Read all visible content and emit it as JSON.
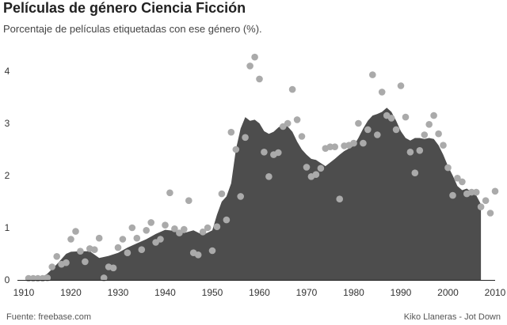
{
  "chart_data": {
    "type": "area",
    "title": "Películas de género Ciencia Ficción",
    "subtitle": "Porcentaje de películas etiquetadas con ese género (%).",
    "xlabel": "",
    "ylabel": "",
    "xlim": [
      1910,
      2010
    ],
    "ylim": [
      0,
      4.3
    ],
    "x_ticks": [
      1910,
      1920,
      1930,
      1940,
      1950,
      1960,
      1970,
      1980,
      1990,
      2000,
      2010
    ],
    "y_ticks": [
      0,
      1,
      2,
      3,
      4
    ],
    "grid": false,
    "colors": {
      "area": "#4d4d4d",
      "points": "#aaaaaa",
      "axis": "#222222"
    },
    "series": [
      {
        "kind": "area",
        "x": [
          1913,
          1915,
          1917,
          1919,
          1920,
          1922,
          1924,
          1926,
          1928,
          1930,
          1932,
          1934,
          1936,
          1938,
          1940,
          1942,
          1944,
          1946,
          1948,
          1950,
          1951,
          1952,
          1953,
          1954,
          1955,
          1956,
          1957,
          1958,
          1959,
          1960,
          1961,
          1962,
          1963,
          1964,
          1965,
          1966,
          1967,
          1968,
          1969,
          1970,
          1971,
          1972,
          1973,
          1974,
          1975,
          1976,
          1977,
          1978,
          1979,
          1980,
          1981,
          1982,
          1983,
          1984,
          1985,
          1986,
          1987,
          1988,
          1989,
          1990,
          1991,
          1992,
          1993,
          1994,
          1995,
          1996,
          1997,
          1998,
          1999,
          2000,
          2001,
          2002,
          2003,
          2004,
          2005,
          2006,
          2007
        ],
        "values": [
          0.0,
          0.12,
          0.3,
          0.5,
          0.54,
          0.55,
          0.55,
          0.42,
          0.46,
          0.52,
          0.62,
          0.7,
          0.78,
          0.88,
          0.96,
          0.94,
          0.9,
          0.95,
          0.86,
          0.95,
          1.25,
          1.5,
          1.6,
          1.85,
          2.5,
          2.9,
          3.12,
          3.05,
          3.07,
          3.0,
          2.85,
          2.8,
          2.84,
          2.92,
          2.98,
          2.94,
          2.84,
          2.65,
          2.5,
          2.4,
          2.32,
          2.3,
          2.24,
          2.18,
          2.25,
          2.32,
          2.4,
          2.47,
          2.52,
          2.57,
          2.72,
          2.9,
          3.05,
          3.15,
          3.18,
          3.22,
          3.3,
          3.22,
          3.05,
          2.85,
          2.72,
          2.67,
          2.72,
          2.72,
          2.7,
          2.72,
          2.7,
          2.58,
          2.4,
          2.18,
          2.0,
          1.8,
          1.72,
          1.75,
          1.68,
          1.62,
          1.45
        ]
      },
      {
        "kind": "scatter",
        "x": [
          1911,
          1912,
          1913,
          1914,
          1915,
          1916,
          1917,
          1918,
          1919,
          1920,
          1921,
          1922,
          1923,
          1924,
          1925,
          1926,
          1927,
          1928,
          1929,
          1930,
          1931,
          1932,
          1933,
          1934,
          1935,
          1936,
          1937,
          1938,
          1939,
          1940,
          1941,
          1942,
          1943,
          1944,
          1945,
          1946,
          1947,
          1948,
          1949,
          1950,
          1951,
          1952,
          1953,
          1954,
          1955,
          1956,
          1957,
          1958,
          1959,
          1960,
          1961,
          1962,
          1963,
          1964,
          1965,
          1966,
          1967,
          1968,
          1969,
          1970,
          1971,
          1972,
          1973,
          1974,
          1975,
          1976,
          1977,
          1978,
          1979,
          1980,
          1981,
          1982,
          1983,
          1984,
          1985,
          1986,
          1987,
          1988,
          1989,
          1990,
          1991,
          1992,
          1993,
          1994,
          1995,
          1996,
          1997,
          1998,
          1999,
          2000,
          2001,
          2002,
          2003,
          2004,
          2005,
          2006,
          2007,
          2008,
          2009,
          2010
        ],
        "values": [
          0.03,
          0.03,
          0.03,
          0.03,
          0.04,
          0.25,
          0.45,
          0.3,
          0.33,
          0.78,
          0.93,
          0.55,
          0.35,
          0.6,
          0.58,
          0.8,
          0.04,
          0.25,
          0.23,
          0.62,
          0.78,
          0.52,
          1.0,
          0.8,
          0.58,
          0.95,
          1.1,
          0.72,
          0.78,
          1.05,
          1.67,
          0.98,
          0.9,
          0.97,
          1.52,
          0.52,
          0.48,
          0.92,
          1.0,
          0.56,
          1.02,
          1.65,
          1.15,
          2.83,
          2.5,
          1.6,
          2.73,
          4.1,
          4.27,
          3.85,
          2.45,
          1.98,
          2.4,
          2.44,
          2.94,
          3.0,
          3.65,
          3.07,
          2.75,
          2.16,
          1.98,
          2.02,
          2.14,
          2.52,
          2.55,
          2.55,
          1.55,
          2.57,
          2.58,
          2.62,
          3.0,
          2.62,
          2.88,
          3.93,
          2.78,
          3.6,
          3.15,
          3.1,
          2.88,
          3.72,
          3.12,
          2.45,
          2.05,
          2.48,
          2.78,
          2.98,
          3.15,
          2.8,
          2.58,
          2.15,
          1.62,
          1.95,
          1.88,
          1.65,
          1.68,
          1.68,
          1.4,
          1.52,
          1.28,
          1.7
        ]
      }
    ]
  },
  "footer": {
    "source": "Fuente: freebase.com",
    "credit": "Kiko Llaneras - Jot Down"
  }
}
